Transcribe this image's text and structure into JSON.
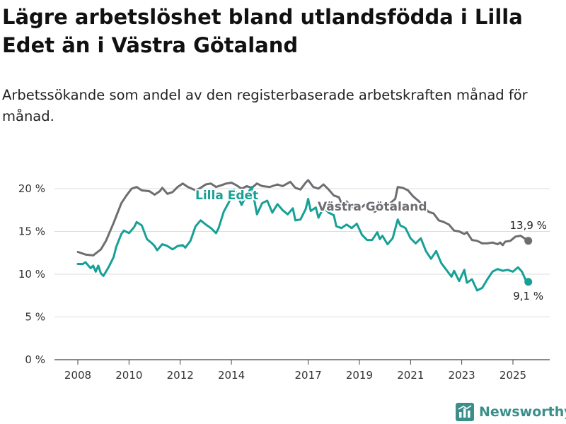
{
  "header": {
    "title": "Lägre arbetslöshet bland utlandsfödda i Lilla Edet än i Västra Götaland",
    "subtitle": "Arbetssökande som andel av den registerbaserade arbetskraften månad för månad."
  },
  "brand": {
    "name": "Newsworthy",
    "icon": "bar-chart-logo-icon",
    "color": "#3a8f8a"
  },
  "chart_data": {
    "type": "line",
    "title": "Lägre arbetslöshet bland utlandsfödda i Lilla Edet än i Västra Götaland",
    "subtitle": "Arbetssökande som andel av den registerbaserade arbetskraften månad för månad.",
    "xlabel": "",
    "ylabel": "",
    "x_ticks": [
      2008,
      2010,
      2012,
      2014,
      2017,
      2019,
      2021,
      2023,
      2025
    ],
    "x_tick_labels": [
      "2008",
      "2010",
      "2012",
      "2014",
      "2017",
      "2019",
      "2021",
      "2023",
      "2025"
    ],
    "xlim": [
      2007.6,
      2026.4
    ],
    "y_ticks": [
      0,
      5,
      10,
      15,
      20
    ],
    "y_tick_labels": [
      "0 %",
      "5 %",
      "10 %",
      "15 %",
      "20 %"
    ],
    "ylim": [
      0,
      22
    ],
    "grid": true,
    "legend": "inline labels",
    "series": [
      {
        "name": "Västra Götaland",
        "color": "#6d6d72",
        "end_label": "13,9 %",
        "points": [
          [
            2008.0,
            12.6
          ],
          [
            2008.3,
            12.3
          ],
          [
            2008.6,
            12.2
          ],
          [
            2008.9,
            12.9
          ],
          [
            2009.1,
            13.9
          ],
          [
            2009.4,
            16.0
          ],
          [
            2009.7,
            18.3
          ],
          [
            2009.9,
            19.2
          ],
          [
            2010.1,
            20.0
          ],
          [
            2010.3,
            20.2
          ],
          [
            2010.5,
            19.8
          ],
          [
            2010.8,
            19.7
          ],
          [
            2011.0,
            19.3
          ],
          [
            2011.2,
            19.7
          ],
          [
            2011.3,
            20.1
          ],
          [
            2011.5,
            19.4
          ],
          [
            2011.7,
            19.6
          ],
          [
            2011.9,
            20.2
          ],
          [
            2012.1,
            20.6
          ],
          [
            2012.3,
            20.2
          ],
          [
            2012.6,
            19.8
          ],
          [
            2012.8,
            20.1
          ],
          [
            2013.0,
            20.5
          ],
          [
            2013.2,
            20.6
          ],
          [
            2013.4,
            20.2
          ],
          [
            2013.6,
            20.4
          ],
          [
            2013.8,
            20.6
          ],
          [
            2014.0,
            20.7
          ],
          [
            2014.2,
            20.4
          ],
          [
            2014.4,
            20.0
          ],
          [
            2014.6,
            20.3
          ],
          [
            2014.8,
            20.1
          ],
          [
            2015.0,
            20.6
          ],
          [
            2015.2,
            20.3
          ],
          [
            2015.5,
            20.2
          ],
          [
            2015.8,
            20.5
          ],
          [
            2016.0,
            20.3
          ],
          [
            2016.3,
            20.8
          ],
          [
            2016.5,
            20.1
          ],
          [
            2016.7,
            19.9
          ],
          [
            2016.9,
            20.7
          ],
          [
            2017.0,
            21.0
          ],
          [
            2017.2,
            20.2
          ],
          [
            2017.4,
            20.0
          ],
          [
            2017.6,
            20.5
          ],
          [
            2017.8,
            19.9
          ],
          [
            2018.0,
            19.2
          ],
          [
            2018.2,
            19.0
          ],
          [
            2018.3,
            18.3
          ],
          [
            2018.5,
            18.5
          ],
          [
            2018.6,
            18.2
          ],
          [
            2018.8,
            17.6
          ],
          [
            2019.0,
            17.6
          ],
          [
            2019.2,
            18.1
          ],
          [
            2019.4,
            17.8
          ],
          [
            2019.6,
            17.3
          ],
          [
            2019.8,
            17.7
          ],
          [
            2020.0,
            17.6
          ],
          [
            2020.2,
            18.3
          ],
          [
            2020.4,
            18.8
          ],
          [
            2020.5,
            20.2
          ],
          [
            2020.7,
            20.1
          ],
          [
            2020.9,
            19.8
          ],
          [
            2021.1,
            19.1
          ],
          [
            2021.3,
            18.6
          ],
          [
            2021.5,
            18.0
          ],
          [
            2021.7,
            17.3
          ],
          [
            2021.9,
            17.1
          ],
          [
            2022.1,
            16.3
          ],
          [
            2022.3,
            16.1
          ],
          [
            2022.5,
            15.8
          ],
          [
            2022.7,
            15.1
          ],
          [
            2022.9,
            15.0
          ],
          [
            2023.1,
            14.7
          ],
          [
            2023.2,
            14.9
          ],
          [
            2023.4,
            14.0
          ],
          [
            2023.6,
            13.9
          ],
          [
            2023.8,
            13.6
          ],
          [
            2024.0,
            13.6
          ],
          [
            2024.2,
            13.7
          ],
          [
            2024.4,
            13.5
          ],
          [
            2024.5,
            13.7
          ],
          [
            2024.6,
            13.4
          ],
          [
            2024.7,
            13.8
          ],
          [
            2024.9,
            13.9
          ],
          [
            2025.1,
            14.4
          ],
          [
            2025.3,
            14.5
          ],
          [
            2025.45,
            14.2
          ],
          [
            2025.6,
            13.9
          ]
        ]
      },
      {
        "name": "Lilla Edet",
        "color": "#17a096",
        "end_label": "9,1 %",
        "points": [
          [
            2008.0,
            11.2
          ],
          [
            2008.2,
            11.2
          ],
          [
            2008.3,
            11.4
          ],
          [
            2008.5,
            10.7
          ],
          [
            2008.6,
            11.0
          ],
          [
            2008.7,
            10.3
          ],
          [
            2008.8,
            11.0
          ],
          [
            2008.9,
            10.1
          ],
          [
            2009.0,
            9.8
          ],
          [
            2009.2,
            10.8
          ],
          [
            2009.4,
            12.0
          ],
          [
            2009.5,
            13.2
          ],
          [
            2009.7,
            14.7
          ],
          [
            2009.8,
            15.1
          ],
          [
            2010.0,
            14.8
          ],
          [
            2010.2,
            15.5
          ],
          [
            2010.3,
            16.1
          ],
          [
            2010.5,
            15.7
          ],
          [
            2010.7,
            14.1
          ],
          [
            2010.9,
            13.6
          ],
          [
            2011.0,
            13.3
          ],
          [
            2011.1,
            12.8
          ],
          [
            2011.3,
            13.5
          ],
          [
            2011.5,
            13.3
          ],
          [
            2011.7,
            12.9
          ],
          [
            2011.9,
            13.3
          ],
          [
            2012.1,
            13.4
          ],
          [
            2012.2,
            13.1
          ],
          [
            2012.4,
            13.9
          ],
          [
            2012.6,
            15.6
          ],
          [
            2012.8,
            16.3
          ],
          [
            2013.0,
            15.8
          ],
          [
            2013.2,
            15.4
          ],
          [
            2013.4,
            14.8
          ],
          [
            2013.5,
            15.4
          ],
          [
            2013.7,
            17.3
          ],
          [
            2013.9,
            18.4
          ],
          [
            2014.1,
            19.9
          ],
          [
            2014.2,
            19.5
          ],
          [
            2014.4,
            18.1
          ],
          [
            2014.6,
            19.3
          ],
          [
            2014.8,
            20.2
          ],
          [
            2015.0,
            17.0
          ],
          [
            2015.2,
            18.3
          ],
          [
            2015.4,
            18.6
          ],
          [
            2015.6,
            17.2
          ],
          [
            2015.8,
            18.2
          ],
          [
            2016.0,
            17.5
          ],
          [
            2016.2,
            17.0
          ],
          [
            2016.4,
            17.7
          ],
          [
            2016.5,
            16.3
          ],
          [
            2016.7,
            16.4
          ],
          [
            2016.9,
            17.6
          ],
          [
            2017.0,
            18.8
          ],
          [
            2017.1,
            17.4
          ],
          [
            2017.3,
            17.8
          ],
          [
            2017.4,
            16.6
          ],
          [
            2017.6,
            17.8
          ],
          [
            2017.8,
            17.2
          ],
          [
            2018.0,
            16.9
          ],
          [
            2018.1,
            15.6
          ],
          [
            2018.3,
            15.4
          ],
          [
            2018.5,
            15.8
          ],
          [
            2018.7,
            15.4
          ],
          [
            2018.9,
            15.9
          ],
          [
            2019.1,
            14.6
          ],
          [
            2019.3,
            14.0
          ],
          [
            2019.5,
            14.0
          ],
          [
            2019.7,
            14.9
          ],
          [
            2019.8,
            14.1
          ],
          [
            2019.9,
            14.5
          ],
          [
            2020.1,
            13.5
          ],
          [
            2020.3,
            14.2
          ],
          [
            2020.5,
            16.4
          ],
          [
            2020.6,
            15.7
          ],
          [
            2020.8,
            15.4
          ],
          [
            2021.0,
            14.2
          ],
          [
            2021.2,
            13.6
          ],
          [
            2021.4,
            14.2
          ],
          [
            2021.6,
            12.7
          ],
          [
            2021.8,
            11.8
          ],
          [
            2022.0,
            12.7
          ],
          [
            2022.2,
            11.3
          ],
          [
            2022.4,
            10.5
          ],
          [
            2022.6,
            9.7
          ],
          [
            2022.7,
            10.4
          ],
          [
            2022.9,
            9.2
          ],
          [
            2023.1,
            10.5
          ],
          [
            2023.2,
            9.0
          ],
          [
            2023.4,
            9.4
          ],
          [
            2023.6,
            8.1
          ],
          [
            2023.8,
            8.4
          ],
          [
            2024.0,
            9.4
          ],
          [
            2024.2,
            10.3
          ],
          [
            2024.4,
            10.6
          ],
          [
            2024.6,
            10.4
          ],
          [
            2024.8,
            10.5
          ],
          [
            2025.0,
            10.3
          ],
          [
            2025.2,
            10.8
          ],
          [
            2025.35,
            10.3
          ],
          [
            2025.5,
            9.3
          ],
          [
            2025.6,
            9.1
          ]
        ]
      }
    ]
  }
}
